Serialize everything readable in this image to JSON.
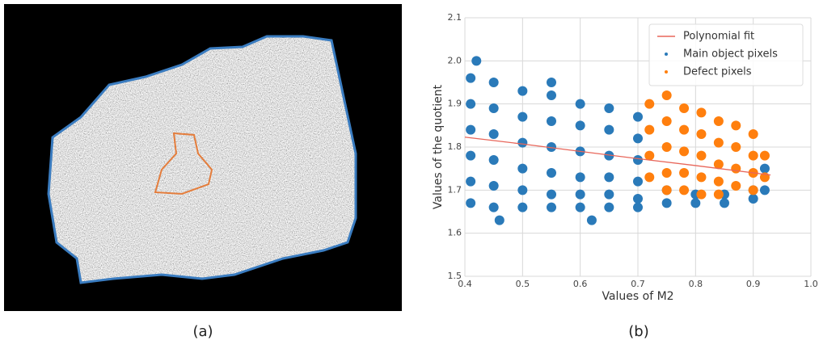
{
  "image_panel": {
    "caption": "(a)"
  },
  "chart_data": {
    "type": "scatter",
    "caption": "(b)",
    "xlabel": "Values of M2",
    "ylabel": "Values of the quotient",
    "xlim": [
      0.4,
      1.0
    ],
    "ylim": [
      1.5,
      2.1
    ],
    "xticks": [
      0.4,
      0.5,
      0.6,
      0.7,
      0.8,
      0.9,
      {
        "value": 1,
        "label": "1.0"
      }
    ],
    "yticks": [
      1.5,
      1.6,
      1.7,
      1.8,
      1.9,
      {
        "value": 2,
        "label": "2.0"
      },
      2.1
    ],
    "grid": true,
    "legend": "upper right",
    "series": [
      {
        "name": "Polynomial fit",
        "type": "line",
        "color": "#e8665a",
        "x": [
          0.4,
          0.5,
          0.6,
          0.7,
          0.8,
          0.93
        ],
        "values": [
          1.823,
          1.807,
          1.79,
          1.773,
          1.757,
          1.735
        ]
      },
      {
        "name": "Main object pixels",
        "type": "scatter",
        "color": "#2a7ab9",
        "x": [
          0.41,
          0.41,
          0.41,
          0.41,
          0.41,
          0.41,
          0.45,
          0.45,
          0.45,
          0.45,
          0.45,
          0.45,
          0.5,
          0.5,
          0.5,
          0.5,
          0.5,
          0.5,
          0.55,
          0.55,
          0.55,
          0.55,
          0.55,
          0.55,
          0.6,
          0.6,
          0.6,
          0.6,
          0.6,
          0.6,
          0.65,
          0.65,
          0.65,
          0.65,
          0.65,
          0.65,
          0.7,
          0.7,
          0.7,
          0.7,
          0.7,
          0.7,
          0.75,
          0.75,
          0.8,
          0.8,
          0.85,
          0.85,
          0.9,
          0.9,
          0.92,
          0.92,
          0.42,
          0.46,
          0.55,
          0.62
        ],
        "values": [
          1.96,
          1.9,
          1.84,
          1.78,
          1.72,
          1.67,
          1.95,
          1.89,
          1.83,
          1.77,
          1.71,
          1.66,
          1.93,
          1.87,
          1.81,
          1.75,
          1.7,
          1.66,
          1.92,
          1.86,
          1.8,
          1.74,
          1.69,
          1.66,
          1.9,
          1.85,
          1.79,
          1.73,
          1.69,
          1.66,
          1.89,
          1.84,
          1.78,
          1.73,
          1.69,
          1.66,
          1.87,
          1.82,
          1.77,
          1.72,
          1.68,
          1.66,
          1.7,
          1.67,
          1.69,
          1.67,
          1.69,
          1.67,
          1.7,
          1.68,
          1.75,
          1.7,
          2.0,
          1.63,
          1.95,
          1.63
        ]
      },
      {
        "name": "Defect pixels",
        "type": "scatter",
        "color": "#ff7f0e",
        "x": [
          0.72,
          0.72,
          0.72,
          0.72,
          0.75,
          0.75,
          0.75,
          0.75,
          0.75,
          0.78,
          0.78,
          0.78,
          0.78,
          0.78,
          0.81,
          0.81,
          0.81,
          0.81,
          0.81,
          0.84,
          0.84,
          0.84,
          0.84,
          0.84,
          0.87,
          0.87,
          0.87,
          0.87,
          0.9,
          0.9,
          0.9,
          0.9,
          0.92,
          0.92
        ],
        "values": [
          1.9,
          1.84,
          1.78,
          1.73,
          1.92,
          1.86,
          1.8,
          1.74,
          1.7,
          1.89,
          1.84,
          1.79,
          1.74,
          1.7,
          1.88,
          1.83,
          1.78,
          1.73,
          1.69,
          1.86,
          1.81,
          1.76,
          1.72,
          1.69,
          1.85,
          1.8,
          1.75,
          1.71,
          1.83,
          1.78,
          1.74,
          1.7,
          1.78,
          1.73
        ]
      }
    ]
  }
}
